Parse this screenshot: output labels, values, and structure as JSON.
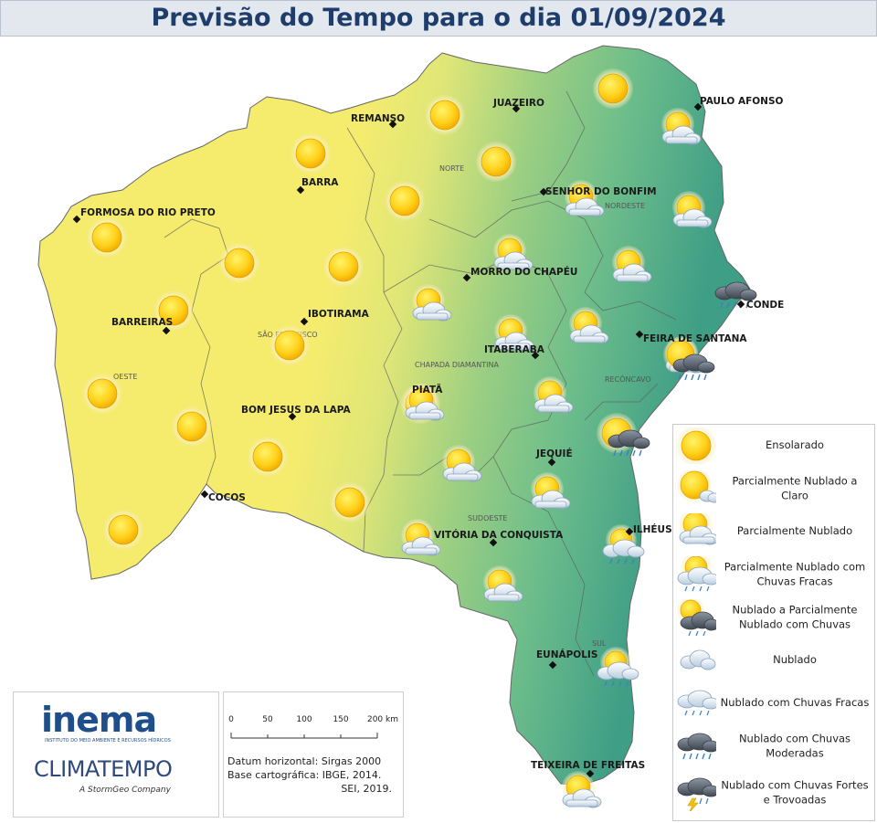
{
  "title": "Previsão do Tempo para o dia 01/09/2024",
  "map": {
    "cities": [
      {
        "name": "REMANSO",
        "marker": true
      },
      {
        "name": "JUAZEIRO",
        "marker": true
      },
      {
        "name": "PAULO AFONSO",
        "marker": true
      },
      {
        "name": "BARRA",
        "marker": true
      },
      {
        "name": "SENHOR DO BONFIM",
        "marker": true
      },
      {
        "name": "FORMOSA DO RIO PRETO",
        "marker": true
      },
      {
        "name": "MORRO DO CHAPÉU",
        "marker": true
      },
      {
        "name": "CONDE",
        "marker": true
      },
      {
        "name": "IBOTIRAMA",
        "marker": true
      },
      {
        "name": "BARREIRAS",
        "marker": true
      },
      {
        "name": "FEIRA DE SANTANA",
        "marker": true
      },
      {
        "name": "ITABERABA",
        "marker": true
      },
      {
        "name": "PIATÃ",
        "marker": false
      },
      {
        "name": "BOM JESUS DA LAPA",
        "marker": true
      },
      {
        "name": "JEQUIÉ",
        "marker": true
      },
      {
        "name": "COCOS",
        "marker": true
      },
      {
        "name": "VITÓRIA DA CONQUISTA",
        "marker": true
      },
      {
        "name": "ILHÉUS",
        "marker": true
      },
      {
        "name": "EUNÁPOLIS",
        "marker": true
      },
      {
        "name": "TEIXEIRA DE FREITAS",
        "marker": true
      }
    ],
    "regions": [
      "NORTE",
      "NORDESTE",
      "SÃO FRANCISCO",
      "OESTE",
      "CHAPADA DIAMANTINA",
      "RECÔNCAVO",
      "SUDOESTE",
      "SUL"
    ],
    "icons": [
      {
        "type": "sunny"
      },
      {
        "type": "sunny"
      },
      {
        "type": "sunny"
      },
      {
        "type": "sunny"
      },
      {
        "type": "sunny"
      },
      {
        "type": "sunny"
      },
      {
        "type": "sunny"
      },
      {
        "type": "sunny"
      },
      {
        "type": "sunny"
      },
      {
        "type": "sunny"
      },
      {
        "type": "sunny"
      },
      {
        "type": "sunny"
      },
      {
        "type": "sunny"
      },
      {
        "type": "sunny"
      },
      {
        "type": "sunny"
      },
      {
        "type": "sunny"
      },
      {
        "type": "sunny"
      },
      {
        "type": "partly-cloudy"
      },
      {
        "type": "partly-cloudy"
      },
      {
        "type": "partly-cloudy"
      },
      {
        "type": "partly-cloudy"
      },
      {
        "type": "partly-cloudy"
      },
      {
        "type": "partly-cloudy"
      },
      {
        "type": "partly-cloudy"
      },
      {
        "type": "partly-cloudy"
      },
      {
        "type": "partly-cloudy"
      },
      {
        "type": "partly-cloudy"
      },
      {
        "type": "partly-cloudy"
      },
      {
        "type": "partly-cloudy"
      },
      {
        "type": "partly-cloudy"
      },
      {
        "type": "partly-cloudy"
      },
      {
        "type": "partly-cloudy"
      },
      {
        "type": "partly-cloudy"
      },
      {
        "type": "partly-cloudy-clear"
      },
      {
        "type": "cloudy-moderate-rain"
      },
      {
        "type": "cloudy-moderate-rain"
      },
      {
        "type": "cloudy-moderate-rain"
      },
      {
        "type": "partly-cloudy-light-rain"
      },
      {
        "type": "partly-cloudy-light-rain"
      }
    ]
  },
  "legend": [
    {
      "icon": "sunny",
      "label": "Ensolarado"
    },
    {
      "icon": "partly-cloudy-clear",
      "label": "Parcialmente Nublado a Claro"
    },
    {
      "icon": "partly-cloudy",
      "label": "Parcialmente Nublado"
    },
    {
      "icon": "partly-cloudy-light-rain",
      "label": "Parcialmente Nublado com Chuvas Fracas"
    },
    {
      "icon": "cloudy-to-partly-rain",
      "label": "Nublado a Parcialmente Nublado com Chuvas"
    },
    {
      "icon": "cloudy",
      "label": "Nublado"
    },
    {
      "icon": "cloudy-light-rain",
      "label": "Nublado com Chuvas Fracas"
    },
    {
      "icon": "cloudy-moderate-rain",
      "label": "Nublado com Chuvas Moderadas"
    },
    {
      "icon": "cloudy-storm",
      "label": "Nublado com Chuvas Fortes e Trovoadas"
    }
  ],
  "logos": {
    "inema": "inema",
    "inema_sub": "INSTITUTO DO MEIO AMBIENTE E RECURSOS HÍDRICOS",
    "climatempo": "CLIMATEMPO",
    "climatempo_sub": "A StormGeo Company"
  },
  "scale": {
    "ticks": [
      "0",
      "50",
      "100",
      "150",
      "200 km"
    ],
    "datum": "Datum horizontal: Sirgas 2000",
    "base": "Base cartográfica: IBGE, 2014.",
    "sei": "SEI, 2019."
  },
  "colors": {
    "title": "#1f3d6b",
    "sunny_region": "#f5ec6e",
    "transition": "#c9df7b",
    "humid_region": "#5fb88e",
    "coast": "#3e9c86"
  }
}
